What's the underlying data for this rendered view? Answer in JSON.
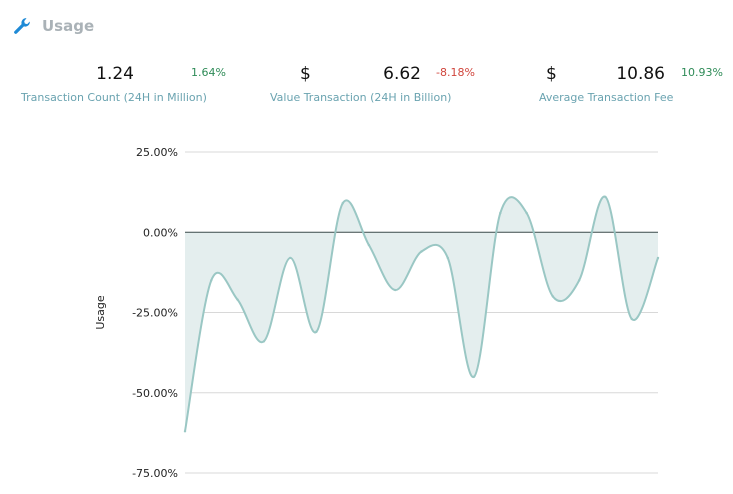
{
  "header": {
    "title": "Usage",
    "icon": "wrench-icon"
  },
  "stats": [
    {
      "currency": "",
      "value": "1.24",
      "change": "1.64%",
      "change_dir": "up",
      "label": "Transaction Count (24H in Million)"
    },
    {
      "currency": "$",
      "value": "6.62",
      "change": "-8.18%",
      "change_dir": "down",
      "label": "Value Transaction (24H in Billion)"
    },
    {
      "currency": "$",
      "value": "10.86",
      "change": "10.93%",
      "change_dir": "up",
      "label": "Average Transaction Fee"
    }
  ],
  "colors": {
    "up": "#2e8b57",
    "down": "#d0453c",
    "line": "#9ac7c4",
    "area": "#e4eeee",
    "grid": "#d8d8d8",
    "zero": "#3b4a4a"
  },
  "chart_data": {
    "type": "area",
    "ylabel": "Usage",
    "xlabel": "",
    "ylim": [
      -75,
      25
    ],
    "yticks": [
      "25.00%",
      "0.00%",
      "-25.00%",
      "-50.00%",
      "-75.00%"
    ],
    "ytick_values": [
      25,
      0,
      -25,
      -50,
      -75
    ],
    "grid": true,
    "values": [
      -62,
      -15,
      -21,
      -34,
      -8,
      -31,
      9,
      -4,
      -18,
      -6,
      -8,
      -45,
      6,
      6,
      -20,
      -15,
      11,
      -27,
      -8
    ]
  }
}
